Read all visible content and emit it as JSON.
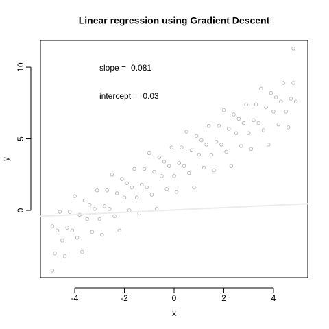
{
  "chart_data": {
    "type": "scatter",
    "title": "Linear regression using Gradient Descent",
    "x_label": "x",
    "y_label": "y",
    "xlim": [
      -5.38,
      5.38
    ],
    "ylim": [
      -4.69,
      11.87
    ],
    "xticks": [
      -4,
      -2,
      0,
      2,
      4
    ],
    "yticks": [
      0,
      5,
      10
    ],
    "color": "#b4b4b4",
    "line_color": "#ececec",
    "annotations": [
      {
        "label": "slope =",
        "value": 0.081
      },
      {
        "label": "intercept =",
        "value": 0.03
      }
    ],
    "x": [
      -4.9,
      -4.8,
      -4.7,
      -4.6,
      -4.5,
      -4.4,
      -4.3,
      -4.2,
      -4.1,
      -4.0,
      -3.9,
      -3.8,
      -3.7,
      -3.6,
      -3.5,
      -3.4,
      -3.3,
      -3.2,
      -3.1,
      -3.0,
      -2.9,
      -2.8,
      -2.7,
      -2.6,
      -2.5,
      -2.4,
      -2.3,
      -2.2,
      -2.1,
      -2.0,
      -1.9,
      -1.8,
      -1.7,
      -1.6,
      -1.5,
      -1.4,
      -1.3,
      -1.2,
      -1.1,
      -1.0,
      -0.9,
      -0.8,
      -0.7,
      -0.6,
      -0.5,
      -0.4,
      -0.3,
      -0.2,
      -0.1,
      0.0,
      0.1,
      0.2,
      0.3,
      0.4,
      0.5,
      0.6,
      0.7,
      0.8,
      0.9,
      1.0,
      1.1,
      1.2,
      1.3,
      1.4,
      1.5,
      1.6,
      1.7,
      1.8,
      1.9,
      2.0,
      2.1,
      2.2,
      2.3,
      2.4,
      2.5,
      2.6,
      2.7,
      2.8,
      2.9,
      3.0,
      3.1,
      3.2,
      3.3,
      3.4,
      3.5,
      3.6,
      3.7,
      3.8,
      3.9,
      4.0,
      4.1,
      4.2,
      4.3,
      4.4,
      4.5,
      4.6,
      4.7,
      4.8,
      4.9,
      4.8,
      -4.9
    ],
    "values": [
      -1.1,
      -3.0,
      -1.4,
      -0.1,
      -2.1,
      -3.2,
      -1.2,
      -0.1,
      -1.4,
      1.0,
      -1.9,
      -0.3,
      -2.9,
      0.7,
      -0.6,
      0.4,
      -1.5,
      0.1,
      1.4,
      -0.6,
      -1.7,
      0.3,
      1.4,
      0.1,
      2.5,
      -0.4,
      1.2,
      -1.4,
      2.2,
      0.9,
      1.9,
      0.0,
      1.6,
      2.9,
      0.9,
      -0.2,
      1.8,
      2.9,
      1.6,
      4.0,
      1.1,
      2.7,
      0.1,
      3.7,
      2.4,
      3.4,
      1.5,
      3.1,
      4.4,
      2.4,
      1.3,
      3.3,
      4.4,
      3.1,
      5.5,
      2.6,
      4.2,
      1.6,
      5.2,
      3.9,
      4.9,
      3.0,
      4.6,
      5.9,
      3.9,
      2.8,
      4.8,
      5.9,
      4.6,
      7.0,
      4.1,
      5.7,
      3.1,
      6.7,
      5.4,
      6.4,
      4.5,
      6.1,
      7.4,
      5.4,
      4.3,
      6.3,
      7.4,
      6.1,
      8.5,
      5.6,
      7.2,
      4.6,
      8.2,
      6.9,
      7.9,
      6.0,
      7.6,
      8.9,
      6.9,
      5.8,
      7.8,
      8.9,
      7.6,
      11.3,
      -4.2
    ]
  }
}
